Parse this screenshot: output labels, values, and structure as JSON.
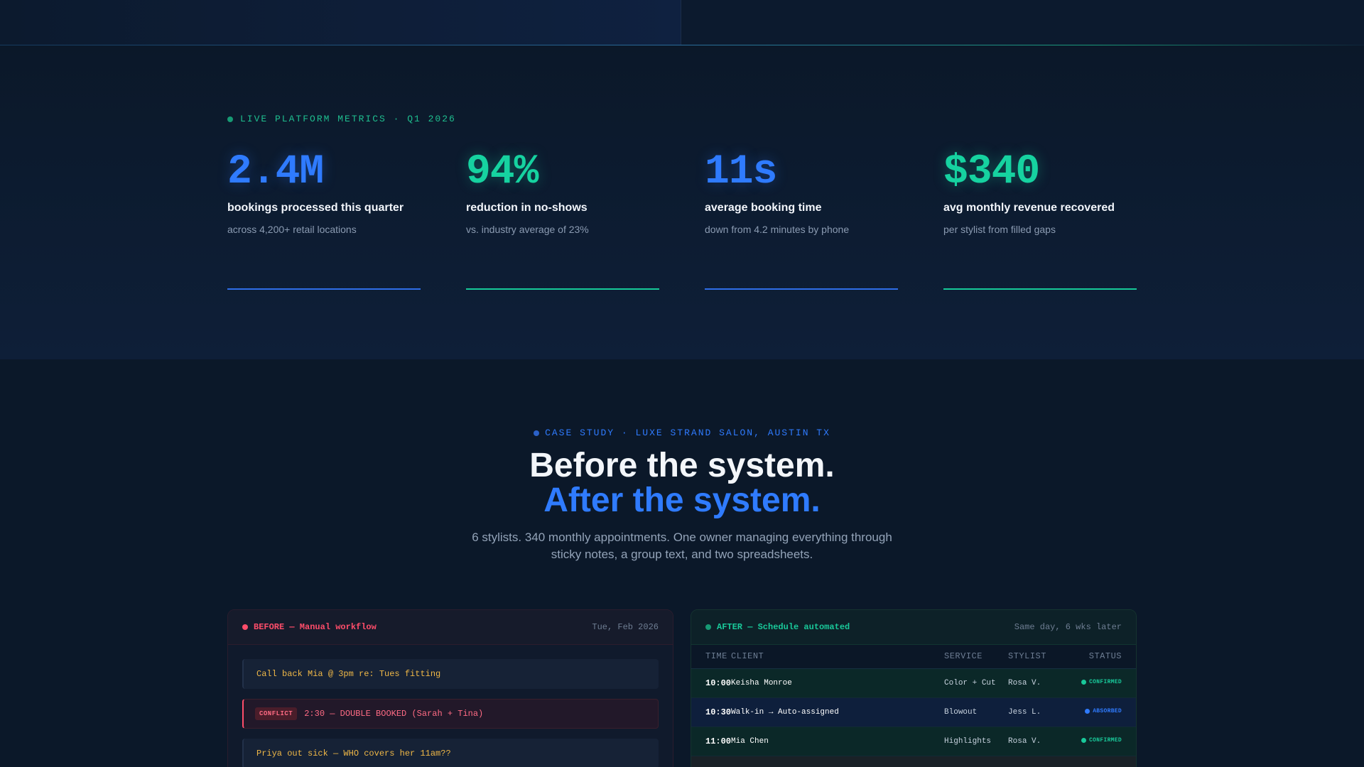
{
  "metrics_section": {
    "eyebrow": "LIVE PLATFORM METRICS · Q1 2026",
    "items": [
      {
        "value": "2.4M",
        "label": "bookings processed this quarter",
        "sub": "across 4,200+ retail locations"
      },
      {
        "value": "94%",
        "label": "reduction in no-shows",
        "sub": "vs. industry average of 23%"
      },
      {
        "value": "11s",
        "label": "average booking time",
        "sub": "down from 4.2 minutes by phone"
      },
      {
        "value": "$340",
        "label": "avg monthly revenue recovered",
        "sub": "per stylist from filled gaps"
      }
    ]
  },
  "case_study": {
    "eyebrow": "CASE STUDY · LUXE STRAND SALON, AUSTIN TX",
    "headline_1": "Before the system.",
    "headline_2": "After the system.",
    "intro": "6 stylists. 340 monthly appointments. One owner managing everything through sticky notes, a group text, and two spreadsheets."
  },
  "before_panel": {
    "title": "BEFORE — Manual workflow",
    "date": "Tue, Feb 2026",
    "notes": [
      {
        "text": "Call back Mia @ 3pm re: Tues fitting"
      },
      {
        "badge": "CONFLICT",
        "text": "2:30 — DOUBLE BOOKED (Sarah + Tina)"
      },
      {
        "text": "Priya out sick — WHO covers her 11am??"
      }
    ]
  },
  "after_panel": {
    "title": "AFTER — Schedule automated",
    "meta": "Same day, 6 wks later",
    "columns": [
      "TIME",
      "CLIENT",
      "SERVICE",
      "STYLIST",
      "STATUS"
    ],
    "rows": [
      {
        "time": "10:00",
        "client": "Keisha Monroe",
        "service": "Color + Cut",
        "stylist": "Rosa V.",
        "status": "CONFIRMED"
      },
      {
        "time": "10:30",
        "client": "Walk-in → Auto-assigned",
        "service": "Blowout",
        "stylist": "Jess L.",
        "status": "ABSORBED"
      },
      {
        "time": "11:00",
        "client": "Mia Chen",
        "service": "Highlights",
        "stylist": "Rosa V.",
        "status": "CONFIRMED"
      }
    ]
  },
  "colors": {
    "accent_blue": "#2f7bff",
    "accent_green": "#16d2a0",
    "alert_red": "#ff4d6a",
    "note_amber": "#f0b847"
  }
}
